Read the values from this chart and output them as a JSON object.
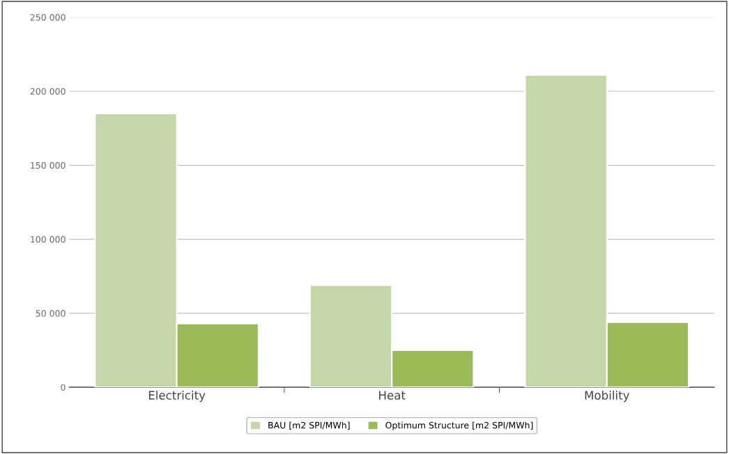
{
  "chart_data": {
    "type": "bar",
    "categories": [
      "Electricity",
      "Heat",
      "Mobility"
    ],
    "series": [
      {
        "name": "BAU [m2 SPI/MWh]",
        "color": "#c5d6a8",
        "values": [
          185000,
          69000,
          211000
        ]
      },
      {
        "name": "Optimum Structure [m2 SPI/MWh]",
        "color": "#9bbb59",
        "values": [
          43000,
          25000,
          44000
        ]
      }
    ],
    "ylim": [
      0,
      250000
    ],
    "yticks": [
      {
        "value": 0,
        "label": "0"
      },
      {
        "value": 50000,
        "label": "50 000"
      },
      {
        "value": 100000,
        "label": "100 000"
      },
      {
        "value": 150000,
        "label": "150 000"
      },
      {
        "value": 200000,
        "label": "200 000"
      },
      {
        "value": 250000,
        "label": "250 000"
      }
    ],
    "grid": "y",
    "legend": "bottom"
  }
}
